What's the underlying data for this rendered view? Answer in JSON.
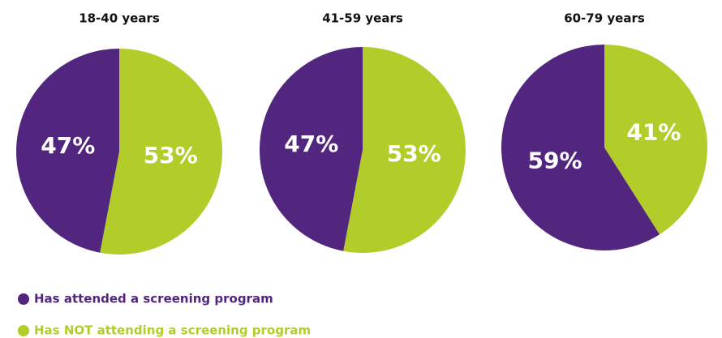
{
  "legend": [
    {
      "name": "Has attended a screening program",
      "color": "#52267f"
    },
    {
      "name": "Has NOT attending a screening program",
      "color": "#b2cd2a"
    }
  ],
  "chart_data": [
    {
      "type": "pie",
      "title": "18-40 years",
      "values": [
        47,
        53
      ],
      "value_labels": [
        "47%",
        "53%"
      ]
    },
    {
      "type": "pie",
      "title": "41-59 years",
      "values": [
        47,
        53
      ],
      "value_labels": [
        "47%",
        "53%"
      ]
    },
    {
      "type": "pie",
      "title": "60-79 years",
      "values": [
        59,
        41
      ],
      "value_labels": [
        "59%",
        "41%"
      ]
    }
  ]
}
